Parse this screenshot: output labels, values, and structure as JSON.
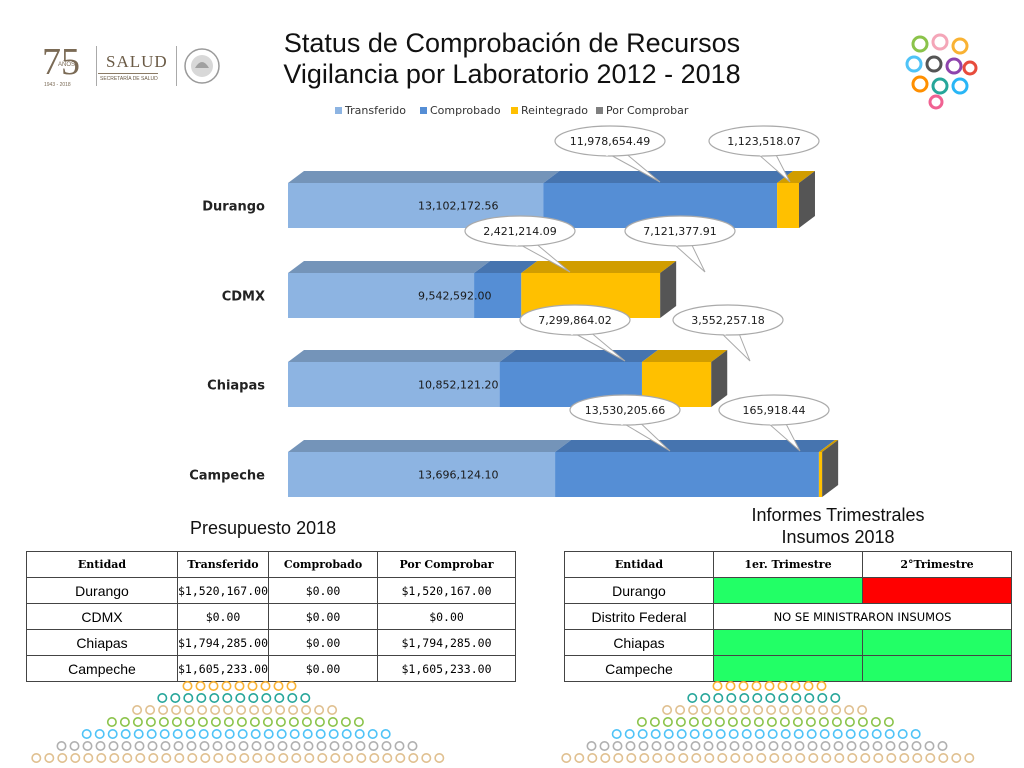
{
  "title": {
    "line1": "Status de Comprobación de Recursos",
    "line2": "Vigilancia por Laboratorio 2012 - 2018"
  },
  "logos": {
    "left_number": "75",
    "left_small": "AÑOS",
    "left_years": "1943 - 2018",
    "left_brand": "SALUD",
    "left_sub": "SECRETARÍA DE SALUD"
  },
  "chart_data": {
    "type": "bar",
    "orientation": "horizontal",
    "stacked": true,
    "categories": [
      "Durango",
      "CDMX",
      "Chiapas",
      "Campeche"
    ],
    "series": [
      {
        "name": "Transferido",
        "color": "#8db4e2",
        "values": [
          13102172.56,
          9542592.0,
          10852121.2,
          13696124.1
        ],
        "labels": [
          "13,102,172.56",
          "9,542,592.00",
          "10,852,121.20",
          "13,696,124.10"
        ]
      },
      {
        "name": "Comprobado",
        "color": "#558ed5",
        "values": [
          11978654.49,
          2421214.09,
          7299864.02,
          13530205.66
        ],
        "labels": [
          "11,978,654.49",
          "2,421,214.09",
          "7,299,864.02",
          "13,530,205.66"
        ]
      },
      {
        "name": "Reintegrado",
        "color": "#ffc000",
        "values": [
          1123518.07,
          7121377.91,
          3552257.18,
          165918.44
        ],
        "labels": [
          "1,123,518.07",
          "7,121,377.91",
          "3,552,257.18",
          "165,918.44"
        ]
      },
      {
        "name": "Por Comprobar",
        "color": "#7f7f7f",
        "values": [
          0,
          0,
          0,
          0
        ]
      }
    ],
    "legend_position": "top",
    "grid": false
  },
  "table_presupuesto": {
    "caption": "Presupuesto 2018",
    "headers": [
      "Entidad",
      "Transferido",
      "Comprobado",
      "Por Comprobar"
    ],
    "rows": [
      [
        "Durango",
        "$1,520,167.00",
        "$0.00",
        "$1,520,167.00"
      ],
      [
        "CDMX",
        "$0.00",
        "$0.00",
        "$0.00"
      ],
      [
        "Chiapas",
        "$1,794,285.00",
        "$0.00",
        "$1,794,285.00"
      ],
      [
        "Campeche",
        "$1,605,233.00",
        "$0.00",
        "$1,605,233.00"
      ]
    ]
  },
  "table_informes": {
    "caption_line1": "Informes Trimestrales",
    "caption_line2": "Insumos 2018",
    "headers": [
      "Entidad",
      "1er. Trimestre",
      "2°Trimestre"
    ],
    "rows": [
      {
        "entity": "Durango",
        "t1_status": "green",
        "t2_status": "red"
      },
      {
        "entity": "Distrito Federal",
        "note": "NO SE MINISTRARON INSUMOS"
      },
      {
        "entity": "Chiapas",
        "t1_status": "green",
        "t2_status": "green"
      },
      {
        "entity": "Campeche",
        "t1_status": "green",
        "t2_status": "green"
      }
    ],
    "colors": {
      "green": "#22ff66",
      "red": "#ff0000"
    }
  }
}
